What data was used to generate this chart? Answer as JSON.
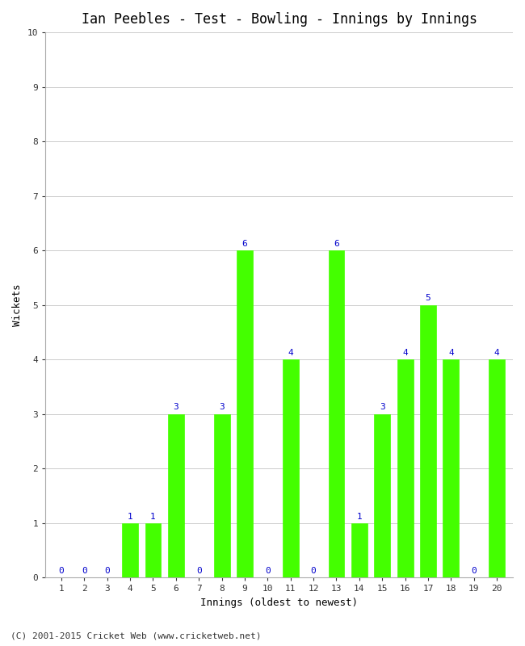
{
  "title": "Ian Peebles - Test - Bowling - Innings by Innings",
  "xlabel": "Innings (oldest to newest)",
  "ylabel": "Wickets",
  "innings": [
    1,
    2,
    3,
    4,
    5,
    6,
    7,
    8,
    9,
    10,
    11,
    12,
    13,
    14,
    15,
    16,
    17,
    18,
    19,
    20
  ],
  "wickets": [
    0,
    0,
    0,
    1,
    1,
    3,
    0,
    3,
    6,
    0,
    4,
    0,
    6,
    1,
    3,
    4,
    5,
    4,
    0,
    4
  ],
  "bar_color": "#44ff00",
  "bar_edge_color": "#44ff00",
  "label_color": "#0000cc",
  "ylim": [
    0,
    10
  ],
  "yticks": [
    0,
    1,
    2,
    3,
    4,
    5,
    6,
    7,
    8,
    9,
    10
  ],
  "xticks": [
    1,
    2,
    3,
    4,
    5,
    6,
    7,
    8,
    9,
    10,
    11,
    12,
    13,
    14,
    15,
    16,
    17,
    18,
    19,
    20
  ],
  "background_color": "#ffffff",
  "grid_color": "#cccccc",
  "footer": "(C) 2001-2015 Cricket Web (www.cricketweb.net)",
  "title_fontsize": 12,
  "axis_label_fontsize": 9,
  "tick_fontsize": 8,
  "value_label_fontsize": 8,
  "footer_fontsize": 8,
  "bar_width": 0.7
}
